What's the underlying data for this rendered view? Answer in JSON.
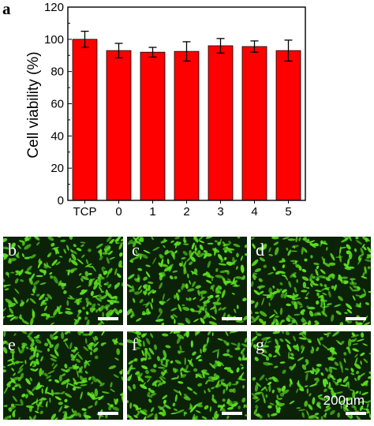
{
  "panel_a_label": "a",
  "chart_data": {
    "type": "bar",
    "categories": [
      "TCP",
      "0",
      "1",
      "2",
      "3",
      "4",
      "5"
    ],
    "values": [
      100,
      93,
      92,
      92.5,
      96,
      95.5,
      93
    ],
    "errors": [
      5,
      4.5,
      3,
      6,
      4.5,
      3.5,
      6.5
    ],
    "ylabel": "Cell viability (%)",
    "xlabel": "",
    "ylim": [
      0,
      120
    ],
    "yticks": [
      0,
      20,
      40,
      60,
      80,
      100,
      120
    ],
    "bar_color": "#ff0000",
    "grid": false
  },
  "micrographs": [
    {
      "label": "b",
      "scale_label": ""
    },
    {
      "label": "c",
      "scale_label": ""
    },
    {
      "label": "d",
      "scale_label": ""
    },
    {
      "label": "e",
      "scale_label": ""
    },
    {
      "label": "f",
      "scale_label": ""
    },
    {
      "label": "g",
      "scale_label": "200μm"
    }
  ],
  "colors": {
    "cells": "#5de021",
    "background": "#0b2208"
  }
}
